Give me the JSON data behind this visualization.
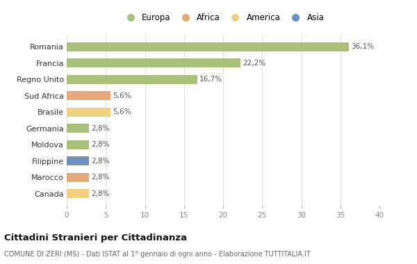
{
  "categories": [
    "Canada",
    "Marocco",
    "Filippine",
    "Moldova",
    "Germania",
    "Brasile",
    "Sud Africa",
    "Regno Unito",
    "Francia",
    "Romania"
  ],
  "values": [
    2.8,
    2.8,
    2.8,
    2.8,
    2.8,
    5.6,
    5.6,
    16.7,
    22.2,
    36.1
  ],
  "labels": [
    "2,8%",
    "2,8%",
    "2,8%",
    "2,8%",
    "2,8%",
    "5,6%",
    "5,6%",
    "16,7%",
    "22,2%",
    "36,1%"
  ],
  "colors": [
    "#f0d080",
    "#e8a878",
    "#6e8fc0",
    "#a8c07a",
    "#a8c07a",
    "#f0d080",
    "#e8a878",
    "#a8c07a",
    "#a8c07a",
    "#a8c07a"
  ],
  "legend_labels": [
    "Europa",
    "Africa",
    "America",
    "Asia"
  ],
  "legend_colors": [
    "#a8c07a",
    "#e8a878",
    "#f0d080",
    "#6e8fc0"
  ],
  "title": "Cittadini Stranieri per Cittadinanza",
  "subtitle": "COMUNE DI ZERI (MS) - Dati ISTAT al 1° gennaio di ogni anno - Elaborazione TUTTITALIA.IT",
  "xlim": [
    0,
    40
  ],
  "xticks": [
    0,
    5,
    10,
    15,
    20,
    25,
    30,
    35,
    40
  ],
  "bg_color": "#ffffff",
  "bar_height": 0.55
}
